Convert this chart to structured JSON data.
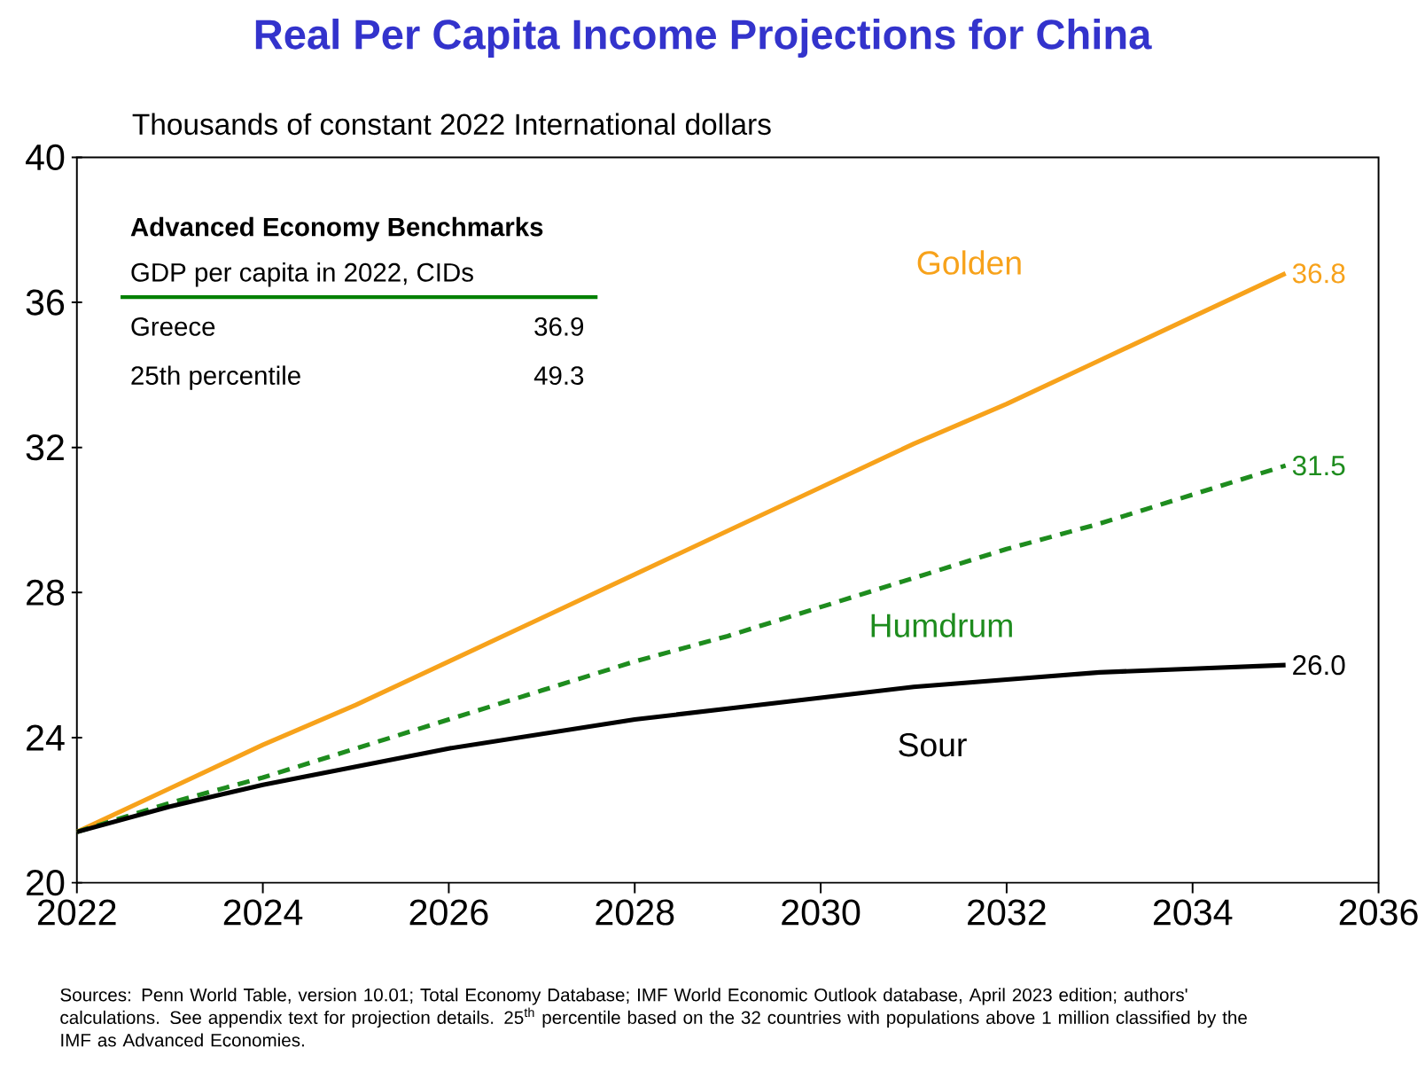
{
  "chart_data": {
    "type": "line",
    "title": "Real Per Capita Income Projections for China",
    "ylabel": "Thousands of constant 2022 International dollars",
    "x": [
      2022,
      2023,
      2024,
      2025,
      2026,
      2027,
      2028,
      2029,
      2030,
      2031,
      2032,
      2033,
      2034,
      2035
    ],
    "series": [
      {
        "name": "Golden",
        "color": "#f7a21b",
        "line_style": "solid",
        "values": [
          21.4,
          22.6,
          23.8,
          24.9,
          26.1,
          27.3,
          28.5,
          29.7,
          30.9,
          32.1,
          33.2,
          34.4,
          35.6,
          36.8
        ],
        "value_labels": [
          null,
          null,
          null,
          null,
          null,
          null,
          null,
          null,
          null,
          null,
          null,
          null,
          null,
          "36.8"
        ]
      },
      {
        "name": "Humdrum",
        "color": "#1e8c1e",
        "line_style": "dashed",
        "values": [
          21.4,
          22.2,
          22.9,
          23.7,
          24.5,
          25.3,
          26.1,
          26.8,
          27.6,
          28.4,
          29.2,
          29.9,
          30.7,
          31.5
        ],
        "value_labels": [
          null,
          null,
          null,
          null,
          null,
          null,
          null,
          null,
          null,
          null,
          null,
          null,
          null,
          "31.5"
        ]
      },
      {
        "name": "Sour",
        "color": "#000000",
        "line_style": "solid",
        "values": [
          21.4,
          22.1,
          22.7,
          23.2,
          23.7,
          24.1,
          24.5,
          24.8,
          25.1,
          25.4,
          25.6,
          25.8,
          25.9,
          26.0
        ],
        "value_labels": [
          null,
          null,
          null,
          null,
          null,
          null,
          null,
          null,
          null,
          null,
          null,
          null,
          null,
          "26.0"
        ]
      }
    ],
    "xlim": [
      2022,
      2036
    ],
    "xticks": [
      2022,
      2024,
      2026,
      2028,
      2030,
      2032,
      2034,
      2036
    ],
    "ylim": [
      20,
      40
    ],
    "yticks": [
      20,
      24,
      28,
      32,
      36,
      40
    ],
    "annotations": [
      "Advanced Economy Benchmarks",
      "GDP per capita in 2022, CIDs",
      "Greece",
      "36.9",
      "25th percentile",
      "49.3",
      "Sources:  Penn World Table, version 10.01; Total Economy Database; IMF World Economic Outlook database, April 2023 edition; authors' calculations.  See appendix text for projection details. 25$^{th}$ percentile based on the 32 countries with populations above 1 million classified by the IMF as Advanced Economies."
    ]
  }
}
